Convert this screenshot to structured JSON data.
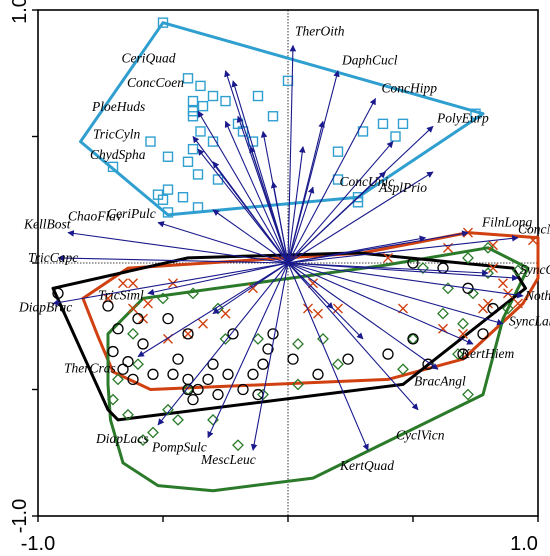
{
  "chart_data": {
    "type": "scatter",
    "subtype": "ordination biplot",
    "xlim": [
      -1.0,
      1.0
    ],
    "ylim": [
      -1.0,
      1.0
    ],
    "x_tick_labels": [
      "-1.0",
      "1.0"
    ],
    "y_tick_labels": [
      "1.0",
      "-1.0"
    ],
    "zero_lines": "dotted",
    "arrow_color": "#1a1a8c",
    "species": [
      {
        "name": "CeriQuad",
        "x": -0.25,
        "y": 0.76
      },
      {
        "name": "ConcCoen",
        "x": -0.22,
        "y": 0.72
      },
      {
        "name": "PloeHuds",
        "x": -0.36,
        "y": 0.6
      },
      {
        "name": "TricCyln",
        "x": -0.38,
        "y": 0.5
      },
      {
        "name": "ChydSpha",
        "x": -0.36,
        "y": 0.45
      },
      {
        "name": "TherOith",
        "x": 0.02,
        "y": 0.86
      },
      {
        "name": "DaphCucl",
        "x": 0.2,
        "y": 0.76
      },
      {
        "name": "ConcHipp",
        "x": 0.35,
        "y": 0.65
      },
      {
        "name": "PolyEurp",
        "x": 0.58,
        "y": 0.54
      },
      {
        "name": "CeriPulc",
        "x": -0.3,
        "y": 0.21
      },
      {
        "name": "ConcUnic",
        "x": 0.39,
        "y": 0.36
      },
      {
        "name": "AsplPrio",
        "x": 0.58,
        "y": 0.36
      },
      {
        "name": "ChaoFlav",
        "x": -0.52,
        "y": 0.16
      },
      {
        "name": "KellBost",
        "x": -0.88,
        "y": 0.12
      },
      {
        "name": "TricCapc",
        "x": -0.92,
        "y": 0.02
      },
      {
        "name": "FilnLong",
        "x": 0.72,
        "y": 0.12
      },
      {
        "name": "ConcNatn",
        "x": 0.92,
        "y": 0.1
      },
      {
        "name": "SyncObln",
        "x": 0.92,
        "y": -0.06
      },
      {
        "name": "NothSqua",
        "x": 0.94,
        "y": -0.13
      },
      {
        "name": "SyncLakw",
        "x": 0.86,
        "y": -0.24
      },
      {
        "name": "DiapBrac",
        "x": -0.94,
        "y": -0.16
      },
      {
        "name": "TricSiml",
        "x": -0.56,
        "y": -0.12
      },
      {
        "name": "KertHiem",
        "x": 0.74,
        "y": -0.32
      },
      {
        "name": "BracAngl",
        "x": 0.6,
        "y": -0.42
      },
      {
        "name": "TherCras",
        "x": -0.6,
        "y": -0.37
      },
      {
        "name": "CyclVicn",
        "x": 0.52,
        "y": -0.58
      },
      {
        "name": "DiapLacs",
        "x": -0.52,
        "y": -0.64
      },
      {
        "name": "PompSulc",
        "x": -0.32,
        "y": -0.69
      },
      {
        "name": "MescLeuc",
        "x": -0.14,
        "y": -0.74
      },
      {
        "name": "KertQuad",
        "x": 0.32,
        "y": -0.74
      },
      {
        "name": "",
        "x": -0.25,
        "y": 0.56
      },
      {
        "name": "",
        "x": -0.2,
        "y": 0.58
      },
      {
        "name": "",
        "x": -0.15,
        "y": 0.46
      },
      {
        "name": "",
        "x": -0.1,
        "y": 0.52
      },
      {
        "name": "",
        "x": -0.06,
        "y": 0.32
      },
      {
        "name": "",
        "x": 0.06,
        "y": 0.46
      },
      {
        "name": "",
        "x": -0.3,
        "y": 0.4
      },
      {
        "name": "",
        "x": 0.14,
        "y": 0.56
      },
      {
        "name": "",
        "x": 0.1,
        "y": 0.3
      },
      {
        "name": "",
        "x": 0.42,
        "y": 0.48
      },
      {
        "name": "",
        "x": 0.55,
        "y": 0.1
      },
      {
        "name": "",
        "x": 0.8,
        "y": -0.04
      },
      {
        "name": "",
        "x": 0.3,
        "y": -0.3
      },
      {
        "name": "",
        "x": -0.3,
        "y": -0.2
      },
      {
        "name": "",
        "x": 0.18,
        "y": -0.18
      }
    ],
    "groups": [
      {
        "marker": "square",
        "color": "#2f9fd0",
        "points": [
          [
            -0.5,
            0.95
          ],
          [
            -0.55,
            0.48
          ],
          [
            -0.48,
            0.42
          ],
          [
            -0.35,
            0.52
          ],
          [
            -0.38,
            0.6
          ],
          [
            -0.35,
            0.7
          ],
          [
            -0.4,
            0.73
          ],
          [
            -0.38,
            0.64
          ],
          [
            -0.34,
            0.62
          ],
          [
            -0.3,
            0.66
          ],
          [
            -0.38,
            0.58
          ],
          [
            -0.25,
            0.64
          ],
          [
            -0.2,
            0.55
          ],
          [
            -0.12,
            0.66
          ],
          [
            -0.06,
            0.58
          ],
          [
            -0.38,
            0.45
          ],
          [
            -0.3,
            0.48
          ],
          [
            -0.4,
            0.4
          ],
          [
            -0.36,
            0.35
          ],
          [
            -0.18,
            0.52
          ],
          [
            -0.14,
            0.48
          ],
          [
            0.0,
            0.72
          ],
          [
            0.2,
            0.44
          ],
          [
            0.3,
            0.52
          ],
          [
            0.43,
            0.5
          ],
          [
            0.38,
            0.55
          ],
          [
            0.46,
            0.55
          ],
          [
            0.75,
            0.59
          ],
          [
            0.28,
            0.26
          ],
          [
            0.28,
            0.24
          ],
          [
            -0.48,
            0.29
          ],
          [
            -0.7,
            0.38
          ],
          [
            -0.52,
            0.27
          ],
          [
            -0.42,
            0.26
          ],
          [
            -0.36,
            0.22
          ],
          [
            -0.48,
            0.2
          ],
          [
            -0.5,
            0.25
          ],
          [
            0.2,
            0.33
          ],
          [
            -0.28,
            0.33
          ]
        ],
        "hull": [
          [
            -0.5,
            0.95
          ],
          [
            0.78,
            0.59
          ],
          [
            0.28,
            0.26
          ],
          [
            -0.48,
            0.19
          ],
          [
            -0.83,
            0.48
          ]
        ]
      },
      {
        "marker": "x",
        "color": "#d04010",
        "points": [
          [
            0.98,
            0.09
          ],
          [
            0.82,
            0.07
          ],
          [
            0.64,
            0.06
          ],
          [
            0.4,
            0.02
          ],
          [
            0.82,
            -0.02
          ],
          [
            0.88,
            -0.12
          ],
          [
            0.78,
            -0.18
          ],
          [
            0.92,
            -0.16
          ],
          [
            -0.62,
            -0.08
          ],
          [
            -0.66,
            -0.08
          ],
          [
            -0.72,
            -0.14
          ],
          [
            -0.62,
            -0.18
          ],
          [
            -0.58,
            -0.22
          ],
          [
            -0.48,
            -0.3
          ],
          [
            -0.4,
            -0.28
          ],
          [
            -0.34,
            -0.24
          ],
          [
            -0.25,
            -0.2
          ],
          [
            -0.14,
            -0.1
          ],
          [
            0.08,
            -0.18
          ],
          [
            0.12,
            -0.2
          ],
          [
            0.2,
            -0.18
          ],
          [
            0.46,
            -0.18
          ],
          [
            0.62,
            -0.26
          ],
          [
            0.7,
            -0.28
          ],
          [
            0.8,
            -0.16
          ],
          [
            0.86,
            -0.08
          ],
          [
            -0.46,
            -0.08
          ],
          [
            -0.56,
            -0.16
          ],
          [
            0.1,
            -0.08
          ],
          [
            0.72,
            0.12
          ]
        ],
        "hull": [
          [
            -0.82,
            -0.14
          ],
          [
            -0.64,
            -0.02
          ],
          [
            0.3,
            0.04
          ],
          [
            0.72,
            0.12
          ],
          [
            1.0,
            0.1
          ],
          [
            1.0,
            -0.06
          ],
          [
            0.94,
            -0.16
          ],
          [
            0.7,
            -0.38
          ],
          [
            0.4,
            -0.46
          ],
          [
            -0.55,
            -0.5
          ],
          [
            -0.7,
            -0.43
          ],
          [
            -0.76,
            -0.29
          ]
        ]
      },
      {
        "marker": "diamond",
        "color": "#2a7a2a",
        "points": [
          [
            0.8,
            0.06
          ],
          [
            0.72,
            0.02
          ],
          [
            0.92,
            -0.03
          ],
          [
            0.88,
            -0.18
          ],
          [
            0.74,
            -0.12
          ],
          [
            0.5,
            -0.3
          ],
          [
            0.68,
            -0.36
          ],
          [
            0.72,
            -0.52
          ],
          [
            0.46,
            -0.42
          ],
          [
            0.2,
            -0.4
          ],
          [
            0.04,
            -0.48
          ],
          [
            -0.1,
            -0.52
          ],
          [
            -0.25,
            -0.3
          ],
          [
            -0.28,
            -0.18
          ],
          [
            -0.38,
            -0.12
          ],
          [
            -0.5,
            -0.14
          ],
          [
            -0.62,
            -0.28
          ],
          [
            -0.68,
            -0.46
          ],
          [
            -0.7,
            -0.54
          ],
          [
            -0.64,
            -0.6
          ],
          [
            -0.58,
            -0.7
          ],
          [
            -0.54,
            -0.67
          ],
          [
            -0.44,
            -0.62
          ],
          [
            -0.2,
            -0.72
          ],
          [
            -0.4,
            -0.5
          ],
          [
            -0.3,
            -0.62
          ],
          [
            -0.12,
            -0.3
          ],
          [
            0.04,
            -0.32
          ],
          [
            0.14,
            -0.3
          ],
          [
            0.62,
            -0.2
          ],
          [
            0.7,
            -0.24
          ],
          [
            0.64,
            -0.1
          ],
          [
            0.54,
            -0.02
          ],
          [
            0.8,
            -0.04
          ],
          [
            -0.6,
            -0.4
          ],
          [
            -0.48,
            -0.58
          ]
        ],
        "hull": [
          [
            -0.72,
            -0.28
          ],
          [
            -0.58,
            -0.14
          ],
          [
            0.38,
            -0.01
          ],
          [
            0.8,
            0.06
          ],
          [
            0.96,
            -0.02
          ],
          [
            0.86,
            -0.22
          ],
          [
            0.78,
            -0.52
          ],
          [
            0.1,
            -0.85
          ],
          [
            -0.3,
            -0.9
          ],
          [
            -0.52,
            -0.88
          ],
          [
            -0.66,
            -0.79
          ],
          [
            -0.71,
            -0.62
          ],
          [
            -0.72,
            -0.48
          ]
        ]
      },
      {
        "marker": "circle",
        "color": "#000000",
        "points": [
          [
            -0.92,
            -0.12
          ],
          [
            -0.72,
            -0.17
          ],
          [
            -0.7,
            -0.35
          ],
          [
            -0.64,
            -0.39
          ],
          [
            -0.58,
            -0.32
          ],
          [
            -0.54,
            -0.44
          ],
          [
            -0.46,
            -0.44
          ],
          [
            -0.44,
            -0.38
          ],
          [
            -0.4,
            -0.46
          ],
          [
            -0.36,
            -0.5
          ],
          [
            -0.32,
            -0.46
          ],
          [
            -0.24,
            -0.44
          ],
          [
            -0.18,
            -0.5
          ],
          [
            -0.14,
            -0.44
          ],
          [
            -0.1,
            -0.4
          ],
          [
            -0.08,
            -0.34
          ],
          [
            -0.06,
            -0.28
          ],
          [
            0.12,
            -0.44
          ],
          [
            0.5,
            -0.3
          ],
          [
            0.56,
            -0.4
          ],
          [
            0.7,
            -0.36
          ],
          [
            0.78,
            -0.28
          ],
          [
            0.82,
            -0.18
          ],
          [
            0.72,
            -0.1
          ],
          [
            0.62,
            -0.02
          ],
          [
            0.5,
            0.0
          ],
          [
            -0.22,
            -0.28
          ],
          [
            -0.4,
            -0.28
          ],
          [
            -0.48,
            -0.22
          ],
          [
            -0.6,
            -0.22
          ],
          [
            -0.68,
            -0.26
          ],
          [
            -0.4,
            -0.5
          ],
          [
            -0.3,
            -0.4
          ],
          [
            0.24,
            -0.38
          ],
          [
            0.4,
            -0.36
          ],
          [
            -0.62,
            -0.46
          ],
          [
            -0.66,
            -0.42
          ],
          [
            -0.38,
            -0.54
          ],
          [
            -0.28,
            -0.52
          ],
          [
            -0.12,
            -0.52
          ],
          [
            0.02,
            -0.38
          ]
        ],
        "hull": [
          [
            -0.94,
            -0.1
          ],
          [
            -0.4,
            0.02
          ],
          [
            0.28,
            0.04
          ],
          [
            0.9,
            -0.02
          ],
          [
            0.95,
            -0.1
          ],
          [
            0.46,
            -0.48
          ],
          [
            -0.68,
            -0.62
          ],
          [
            -0.72,
            -0.58
          ]
        ]
      }
    ]
  }
}
